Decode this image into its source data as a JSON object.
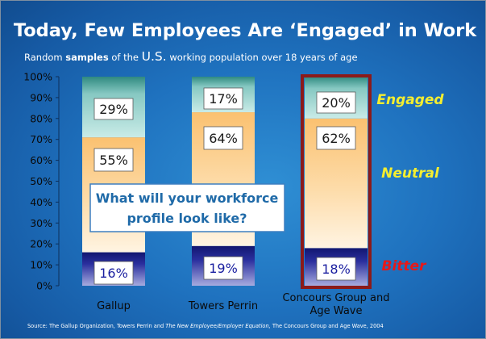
{
  "slide": {
    "title": "Today, Few Employees Are ‘Engaged’ in Work",
    "subtitle_pre": "Random ",
    "subtitle_bold": "samples",
    "subtitle_mid": " of the ",
    "subtitle_big": "U.S.",
    "subtitle_post": " working population over 18 years of age",
    "callout_line1": "What will your workforce",
    "callout_line2": "profile look like?",
    "source_pre": "Source:  The Gallup Organization,  Towers Perrin and ",
    "source_italic": "The New Employee/Employer Equation,",
    "source_post": " The Concours Group and Age Wave, 2004"
  },
  "colors": {
    "engaged": "#a8d8d4",
    "neutral": "#fcd79e",
    "bitter": "#1a1f86",
    "highlight_border": "#8b1a1a",
    "engaged_label": "#f4ee30",
    "bitter_label": "#e81818"
  },
  "chart_data": {
    "type": "bar",
    "stacked": true,
    "categories": [
      "Gallup",
      "Towers Perrin",
      "Concours Group and Age Wave"
    ],
    "series": [
      {
        "name": "Bitter",
        "values": [
          16,
          19,
          18
        ]
      },
      {
        "name": "Neutral",
        "values": [
          55,
          64,
          62
        ]
      },
      {
        "name": "Engaged",
        "values": [
          29,
          17,
          20
        ]
      }
    ],
    "value_labels": {
      "Bitter": [
        "16%",
        "19%",
        "18%"
      ],
      "Neutral": [
        "55%",
        "64%",
        "62%"
      ],
      "Engaged": [
        "29%",
        "17%",
        "20%"
      ]
    },
    "ylim": [
      0,
      100
    ],
    "yticks": [
      "0%",
      "10%",
      "20%",
      "30%",
      "40%",
      "50%",
      "60%",
      "70%",
      "80%",
      "90%",
      "100%"
    ],
    "highlight_category": "Concours Group and Age Wave",
    "legend_labels": [
      "Engaged",
      "Neutral",
      "Bitter"
    ]
  }
}
